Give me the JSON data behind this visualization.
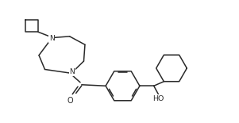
{
  "bg_color": "#ffffff",
  "line_color": "#2a2a2a",
  "line_width": 1.1,
  "figsize": [
    3.01,
    1.55
  ],
  "dpi": 100,
  "oh_label": "HO",
  "o_label": "O",
  "n1_label": "N",
  "n2_label": "N"
}
